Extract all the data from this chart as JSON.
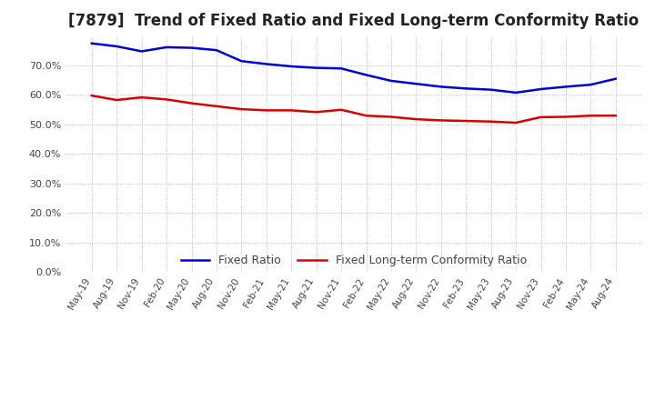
{
  "title": "[7879]  Trend of Fixed Ratio and Fixed Long-term Conformity Ratio",
  "x_labels": [
    "May-19",
    "Aug-19",
    "Nov-19",
    "Feb-20",
    "May-20",
    "Aug-20",
    "Nov-20",
    "Feb-21",
    "May-21",
    "Aug-21",
    "Nov-21",
    "Feb-22",
    "May-22",
    "Aug-22",
    "Nov-22",
    "Feb-23",
    "May-23",
    "Aug-23",
    "Nov-23",
    "Feb-24",
    "May-24",
    "Aug-24"
  ],
  "fixed_ratio": [
    0.775,
    0.765,
    0.748,
    0.762,
    0.76,
    0.752,
    0.715,
    0.705,
    0.697,
    0.692,
    0.69,
    0.668,
    0.648,
    0.638,
    0.628,
    0.622,
    0.618,
    0.608,
    0.62,
    0.628,
    0.635,
    0.655
  ],
  "fixed_lt_ratio": [
    0.598,
    0.583,
    0.592,
    0.585,
    0.572,
    0.562,
    0.552,
    0.548,
    0.548,
    0.542,
    0.55,
    0.53,
    0.526,
    0.518,
    0.514,
    0.512,
    0.51,
    0.506,
    0.525,
    0.526,
    0.53,
    0.53
  ],
  "fixed_ratio_color": "#0000dd",
  "fixed_lt_ratio_color": "#dd0000",
  "ylim": [
    0.0,
    0.8
  ],
  "yticks": [
    0.0,
    0.1,
    0.2,
    0.3,
    0.4,
    0.5,
    0.6,
    0.7
  ],
  "background_color": "#ffffff",
  "grid_color": "#aaaaaa",
  "title_fontsize": 12,
  "legend_labels": [
    "Fixed Ratio",
    "Fixed Long-term Conformity Ratio"
  ]
}
